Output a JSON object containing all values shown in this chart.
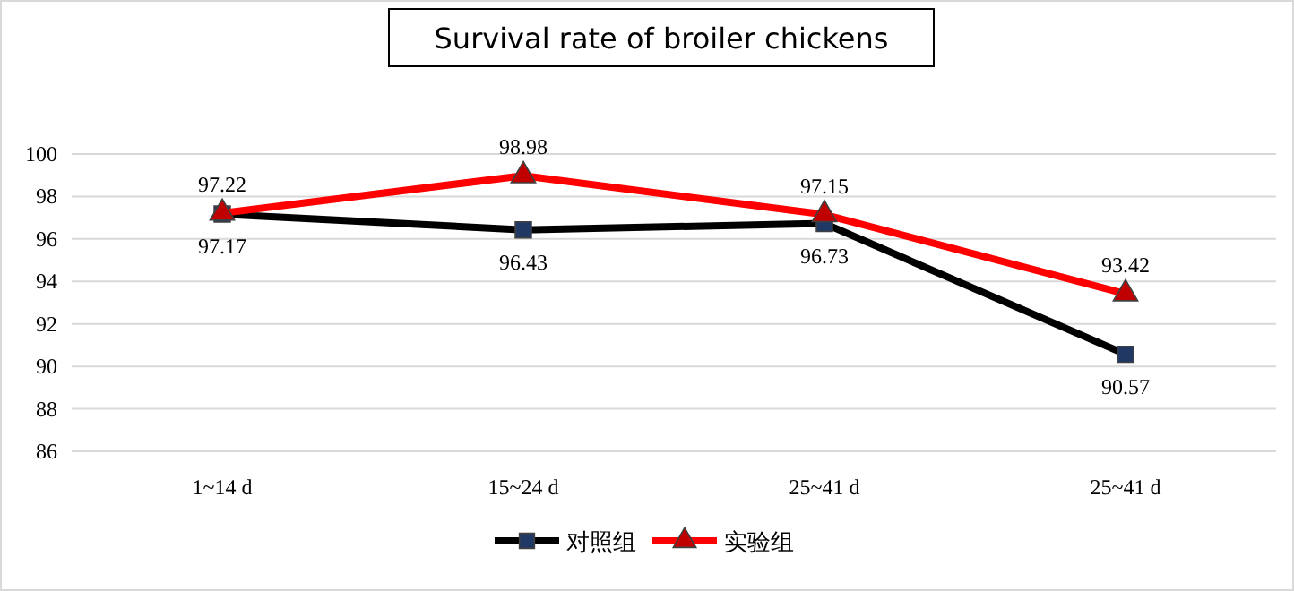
{
  "chart_data": {
    "type": "line",
    "title": "Survival rate of broiler chickens",
    "categories": [
      "1~14 d",
      "15~24 d",
      "25~41 d",
      "25~41 d"
    ],
    "series": [
      {
        "name": "对照组",
        "color": "#000000",
        "marker": "square",
        "values": [
          97.17,
          96.43,
          96.73,
          90.57
        ]
      },
      {
        "name": "实验组",
        "color": "#ff0000",
        "marker": "triangle",
        "values": [
          97.22,
          98.98,
          97.15,
          93.42
        ]
      }
    ],
    "ylim": [
      86,
      100
    ],
    "yticks": [
      86,
      88,
      90,
      92,
      94,
      96,
      98,
      100
    ],
    "grid": "y",
    "data_labels": true,
    "legend": "bottom"
  }
}
